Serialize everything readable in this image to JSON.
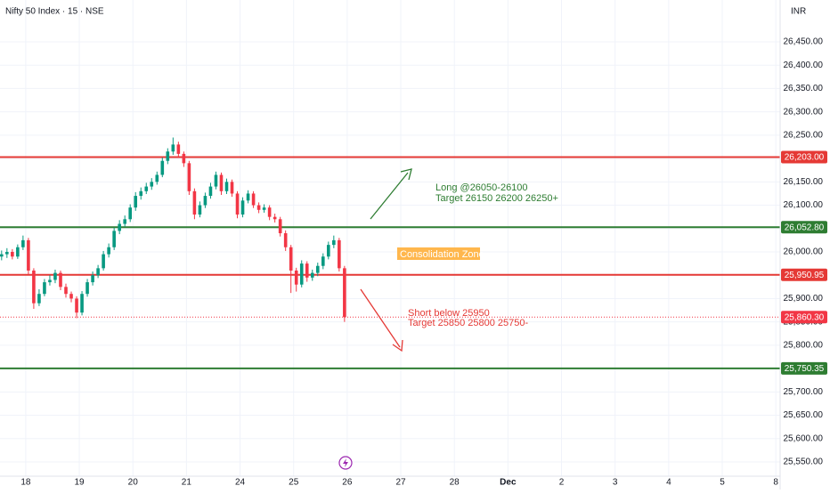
{
  "chart_data": {
    "type": "candlestick",
    "title": "Nifty 50 Index · 15 · NSE",
    "currency": "INR",
    "up_color": "#089981",
    "down_color": "#f23645",
    "x": [
      -0.45,
      -0.35,
      -0.25,
      -0.15,
      -0.05,
      0.05,
      0.15,
      0.25,
      0.35,
      0.45,
      0.55,
      0.65,
      0.75,
      0.85,
      0.95,
      1.05,
      1.15,
      1.25,
      1.35,
      1.45,
      1.55,
      1.65,
      1.75,
      1.85,
      1.95,
      2.05,
      2.15,
      2.25,
      2.35,
      2.45,
      2.55,
      2.65,
      2.75,
      2.85,
      2.95,
      3.05,
      3.15,
      3.25,
      3.35,
      3.45,
      3.55,
      3.65,
      3.75,
      3.85,
      3.95,
      4.05,
      4.15,
      4.25,
      4.35,
      4.45,
      4.55,
      4.65,
      4.75,
      4.85,
      4.95,
      5.05,
      5.15,
      5.25,
      5.35,
      5.45,
      5.55,
      5.65,
      5.75,
      5.85,
      5.95
    ],
    "open": [
      25990,
      25995,
      26000,
      25990,
      26010,
      26025,
      25960,
      25890,
      25910,
      25935,
      25940,
      25955,
      25925,
      25910,
      25900,
      25870,
      25910,
      25935,
      25950,
      25965,
      25995,
      26010,
      26045,
      26060,
      26070,
      26095,
      26120,
      26130,
      26140,
      26150,
      26165,
      26195,
      26215,
      26230,
      26210,
      26190,
      26130,
      26080,
      26100,
      26120,
      26140,
      26165,
      26130,
      26150,
      26125,
      26080,
      26110,
      26125,
      26100,
      26090,
      26095,
      26075,
      26070,
      26040,
      26010,
      25960,
      25930,
      25975,
      25945,
      25955,
      25970,
      25990,
      26015,
      26025,
      25965
    ],
    "high": [
      26003,
      26008,
      26006,
      26016,
      26035,
      26030,
      25965,
      25920,
      25942,
      25950,
      25962,
      25960,
      25932,
      25915,
      25905,
      25916,
      25942,
      25958,
      25972,
      26002,
      26018,
      26052,
      26068,
      26078,
      26102,
      26128,
      26138,
      26148,
      26158,
      26172,
      26202,
      26222,
      26245,
      26236,
      26215,
      26195,
      26136,
      26108,
      26127,
      26148,
      26172,
      26170,
      26157,
      26155,
      26130,
      26117,
      26132,
      26130,
      26106,
      26102,
      26100,
      26082,
      26075,
      26046,
      26015,
      25966,
      25982,
      25980,
      25962,
      25977,
      25997,
      26022,
      26035,
      26030,
      25970
    ],
    "low": [
      25982,
      25987,
      25984,
      25985,
      26004,
      25952,
      25878,
      25884,
      25905,
      25928,
      25933,
      25918,
      25902,
      25892,
      25858,
      25864,
      25904,
      25928,
      25944,
      25960,
      25988,
      26004,
      26038,
      26054,
      26064,
      26088,
      26112,
      26124,
      26133,
      26144,
      26160,
      26188,
      26208,
      26202,
      26182,
      26122,
      26070,
      26074,
      26094,
      26114,
      26134,
      26122,
      26124,
      26118,
      26072,
      26074,
      26104,
      26094,
      26083,
      26084,
      26068,
      26063,
      26033,
      26002,
      25912,
      25915,
      25924,
      25936,
      25938,
      25948,
      25963,
      25984,
      26008,
      25958,
      25850
    ],
    "close": [
      25995,
      26000,
      25990,
      26010,
      26025,
      25960,
      25890,
      25910,
      25935,
      25940,
      25955,
      25925,
      25910,
      25900,
      25870,
      25910,
      25935,
      25950,
      25965,
      25995,
      26010,
      26045,
      26060,
      26070,
      26095,
      26120,
      26130,
      26140,
      26150,
      26165,
      26195,
      26215,
      26230,
      26210,
      26190,
      26130,
      26080,
      26100,
      26120,
      26140,
      26165,
      26130,
      26150,
      26125,
      26080,
      26110,
      26125,
      26100,
      26090,
      26095,
      26075,
      26070,
      26040,
      26010,
      25960,
      25930,
      25975,
      25945,
      25955,
      25970,
      25990,
      26015,
      26025,
      25965,
      25860.3
    ],
    "xlim": [
      -0.48,
      14.08
    ],
    "xticks": [
      {
        "value": 0,
        "label": "18"
      },
      {
        "value": 1,
        "label": "19"
      },
      {
        "value": 2,
        "label": "20"
      },
      {
        "value": 3,
        "label": "21"
      },
      {
        "value": 4,
        "label": "24"
      },
      {
        "value": 5,
        "label": "25"
      },
      {
        "value": 6,
        "label": "26"
      },
      {
        "value": 7,
        "label": "27"
      },
      {
        "value": 8,
        "label": "28"
      },
      {
        "value": 9,
        "label": "Dec"
      },
      {
        "value": 10,
        "label": "2"
      },
      {
        "value": 11,
        "label": "3"
      },
      {
        "value": 12,
        "label": "4"
      },
      {
        "value": 13,
        "label": "5"
      },
      {
        "value": 14,
        "label": "8"
      }
    ],
    "ylim": [
      25519.5,
      26539.6
    ],
    "yticks": [
      {
        "value": 25550,
        "label": "25,550.00"
      },
      {
        "value": 25600,
        "label": "25,600.00"
      },
      {
        "value": 25650,
        "label": "25,650.00"
      },
      {
        "value": 25700,
        "label": "25,700.00"
      },
      {
        "value": 25750,
        "label": "25,750.00"
      },
      {
        "value": 25800,
        "label": "25,800.00"
      },
      {
        "value": 25850,
        "label": "25,850.00"
      },
      {
        "value": 25900,
        "label": "25,900.00"
      },
      {
        "value": 25950,
        "label": "25,950.00"
      },
      {
        "value": 26000,
        "label": "26,000.00"
      },
      {
        "value": 26050,
        "label": "26,050.00"
      },
      {
        "value": 26100,
        "label": "26,100.00"
      },
      {
        "value": 26150,
        "label": "26,150.00"
      },
      {
        "value": 26200,
        "label": "26,200.00"
      },
      {
        "value": 26250,
        "label": "26,250.00"
      },
      {
        "value": 26300,
        "label": "26,300.00"
      },
      {
        "value": 26350,
        "label": "26,350.00"
      },
      {
        "value": 26400,
        "label": "26,400.00"
      },
      {
        "value": 26450,
        "label": "26,450.00"
      }
    ],
    "grid": true,
    "levels": [
      {
        "value": 26203,
        "label": "26,203.00",
        "color": "#e53935"
      },
      {
        "value": 26052.8,
        "label": "26,052.80",
        "color": "#2e7d32"
      },
      {
        "value": 25950.95,
        "label": "25,950.95",
        "color": "#e53935"
      },
      {
        "value": 25750.35,
        "label": "25,750.35",
        "color": "#2e7d32"
      }
    ],
    "last_price": {
      "value": 25860.3,
      "label": "25,860.30",
      "color": "#f23645"
    },
    "annotations": {
      "long": [
        "Long @26050-26100",
        "Target 26150 26200 26250+"
      ],
      "zone": "Consolidation Zone",
      "short": [
        "Short below 25950",
        "Target 25850 25800 25750-"
      ]
    }
  }
}
